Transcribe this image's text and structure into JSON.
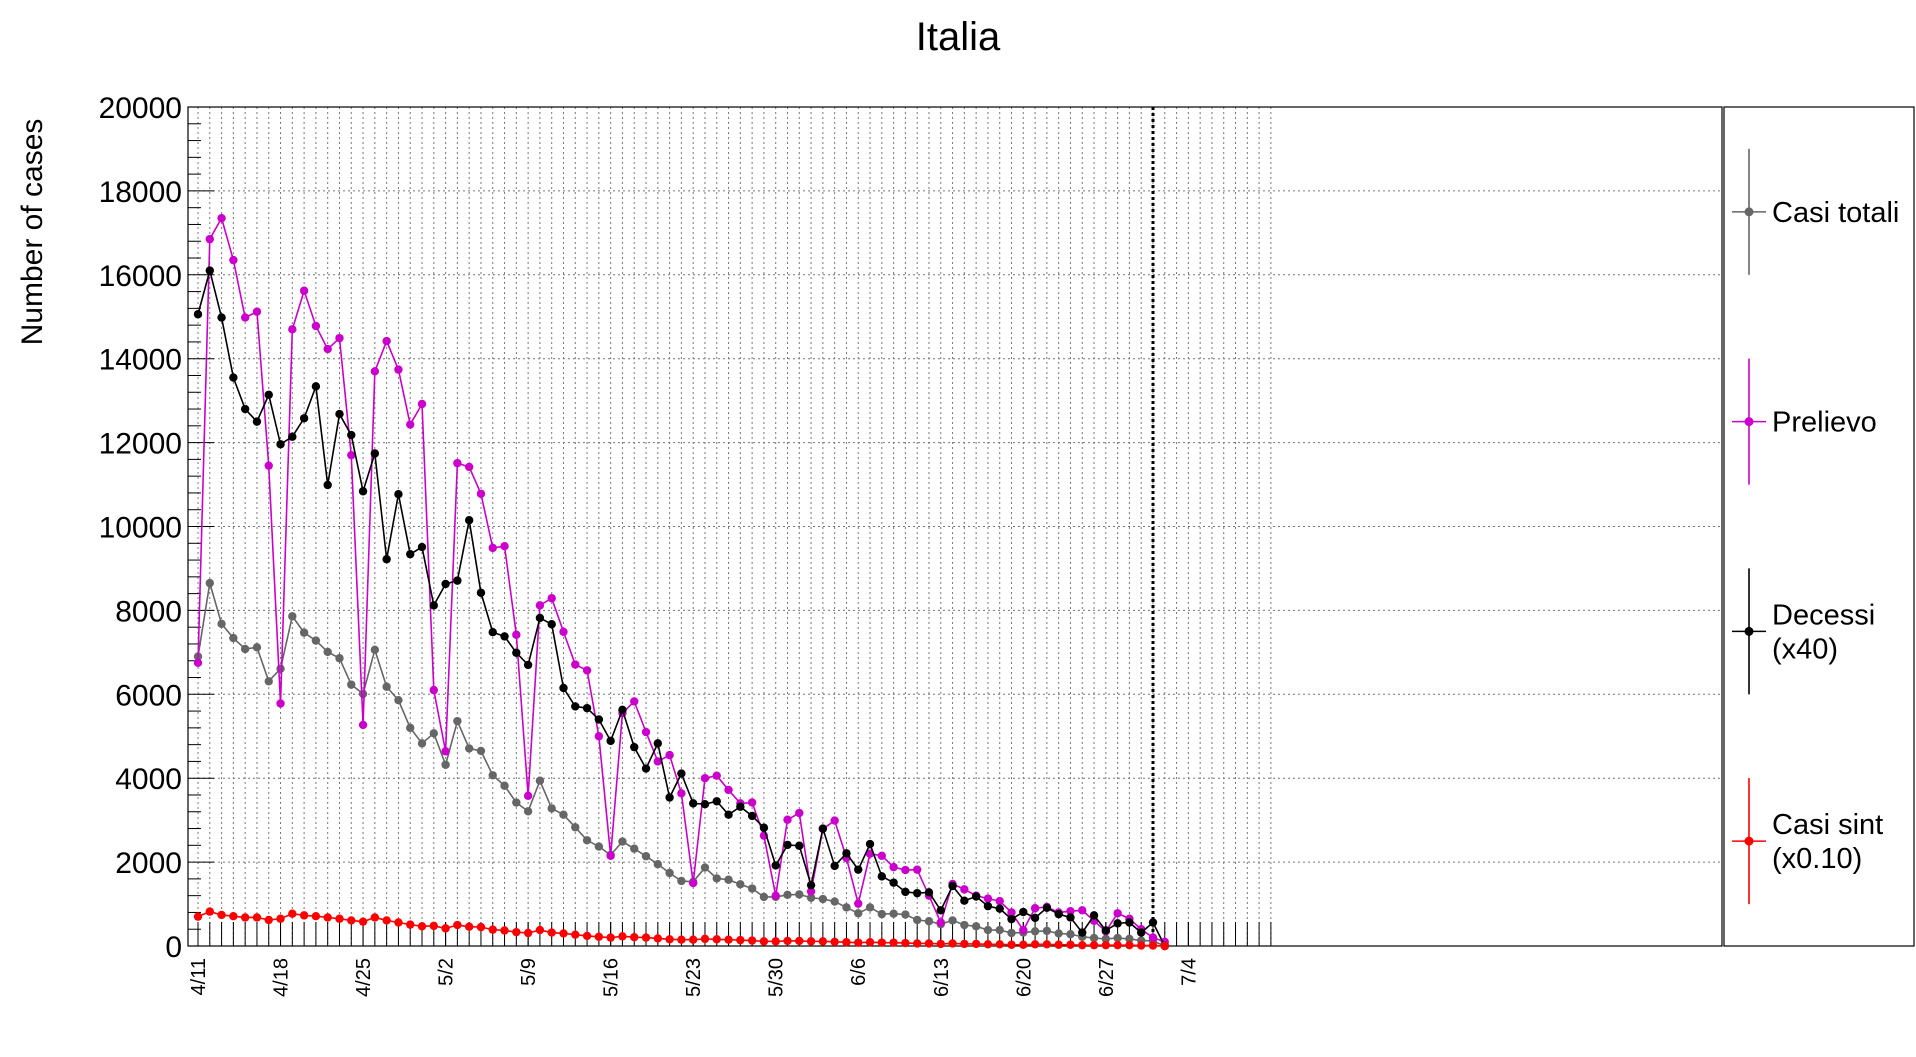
{
  "chart_data": {
    "type": "line",
    "title": "Italia",
    "ylabel": "Number of cases",
    "xlabel": "",
    "ylim": [
      0,
      20000
    ],
    "y_ticks": [
      0,
      2000,
      4000,
      6000,
      8000,
      10000,
      12000,
      14000,
      16000,
      18000,
      20000
    ],
    "x_tick_labels": [
      "4/11",
      "4/18",
      "4/25",
      "5/2",
      "5/9",
      "5/16",
      "5/23",
      "5/30",
      "6/6",
      "6/13",
      "6/20",
      "6/27",
      "7/4"
    ],
    "start_date": "4/11",
    "num_days": 92,
    "marker_date": "7/1",
    "grid": true,
    "legend_position": "right",
    "series": [
      {
        "name": "Casi totali",
        "legend_lines": [
          "Casi totali"
        ],
        "color": "#666666",
        "values": [
          6900,
          8650,
          7680,
          7340,
          7080,
          7120,
          6310,
          6610,
          7860,
          7470,
          7280,
          7010,
          6860,
          6230,
          6010,
          7060,
          6180,
          5860,
          5200,
          4830,
          5070,
          4320,
          5360,
          4710,
          4650,
          4070,
          3820,
          3420,
          3210,
          3940,
          3280,
          3130,
          2830,
          2520,
          2370,
          2170,
          2490,
          2320,
          2140,
          1950,
          1740,
          1550,
          1530,
          1870,
          1610,
          1580,
          1470,
          1370,
          1170,
          1170,
          1220,
          1230,
          1150,
          1120,
          1060,
          920,
          780,
          920,
          760,
          770,
          750,
          620,
          590,
          520,
          610,
          500,
          470,
          380,
          380,
          310,
          320,
          350,
          360,
          300,
          280,
          220,
          190,
          170,
          190,
          170,
          130,
          120,
          0
        ]
      },
      {
        "name": "Prelievo",
        "legend_lines": [
          "Prelievo"
        ],
        "color": "#cc00cc",
        "values": [
          6750,
          16850,
          17350,
          16350,
          14980,
          15120,
          11450,
          5780,
          14700,
          15620,
          14780,
          14230,
          14490,
          11700,
          5270,
          13700,
          14420,
          13740,
          12430,
          12920,
          6100,
          4640,
          11510,
          11420,
          10780,
          9490,
          9530,
          7420,
          3580,
          8120,
          8290,
          7490,
          6710,
          6570,
          5000,
          2150,
          5550,
          5830,
          5100,
          4400,
          4550,
          3640,
          1500,
          4000,
          4060,
          3720,
          3400,
          3420,
          2630,
          1200,
          3010,
          3170,
          1300,
          2790,
          2990,
          2100,
          1010,
          2200,
          2150,
          1880,
          1810,
          1820,
          1200,
          560,
          1480,
          1350,
          1200,
          1130,
          1070,
          800,
          380,
          900,
          930,
          800,
          830,
          850,
          600,
          350,
          780,
          650,
          400,
          200,
          100
        ]
      },
      {
        "name": "Decessi",
        "legend_lines": [
          "Decessi",
          "(x40)"
        ],
        "color": "#000000",
        "values": [
          15060,
          16100,
          14980,
          13550,
          12800,
          12500,
          13140,
          11960,
          12140,
          12580,
          13340,
          10990,
          12680,
          12180,
          10840,
          11740,
          9220,
          10770,
          9340,
          9510,
          8120,
          8630,
          8710,
          10150,
          8420,
          7480,
          7380,
          6990,
          6700,
          7820,
          7670,
          6150,
          5710,
          5670,
          5400,
          4890,
          5630,
          4740,
          4230,
          4830,
          3540,
          4110,
          3400,
          3380,
          3450,
          3130,
          3320,
          3100,
          2820,
          1920,
          2410,
          2390,
          1450,
          2800,
          1910,
          2210,
          1820,
          2430,
          1660,
          1510,
          1290,
          1260,
          1280,
          850,
          1430,
          1080,
          1180,
          950,
          890,
          640,
          810,
          670,
          910,
          760,
          680,
          320,
          730,
          370,
          540,
          560,
          320,
          560,
          0
        ]
      },
      {
        "name": "Casi sint",
        "legend_lines": [
          "Casi sint",
          "(x0.10)"
        ],
        "color": "#ff0000",
        "values": [
          700,
          820,
          740,
          710,
          680,
          680,
          620,
          650,
          770,
          730,
          710,
          680,
          650,
          610,
          580,
          680,
          610,
          560,
          510,
          470,
          480,
          420,
          500,
          460,
          450,
          390,
          370,
          330,
          310,
          380,
          320,
          300,
          270,
          240,
          220,
          200,
          230,
          210,
          200,
          180,
          160,
          150,
          150,
          170,
          160,
          150,
          140,
          130,
          110,
          110,
          120,
          120,
          110,
          110,
          100,
          90,
          80,
          90,
          80,
          80,
          70,
          60,
          60,
          50,
          60,
          50,
          50,
          40,
          40,
          30,
          30,
          40,
          40,
          30,
          30,
          20,
          20,
          20,
          20,
          20,
          10,
          10,
          0
        ]
      }
    ]
  }
}
